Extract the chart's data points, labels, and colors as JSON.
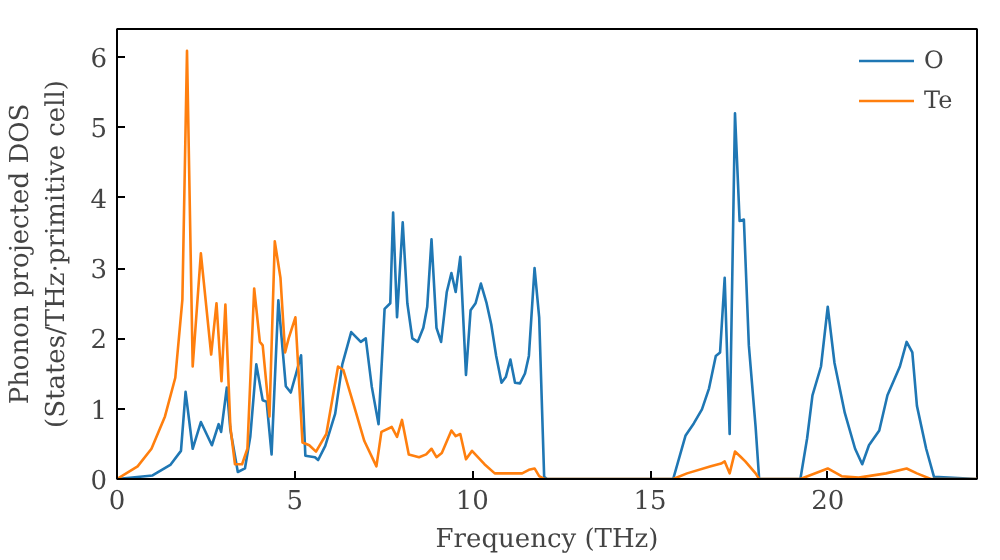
{
  "chart_data": {
    "type": "line",
    "xlabel": "Frequency (THz)",
    "ylabel": "Phonon projected DOS\n(States/THz·primitive cell)",
    "xlim": [
      0,
      24.2
    ],
    "ylim": [
      0,
      6.4
    ],
    "xticks": [
      0,
      5,
      10,
      15,
      20
    ],
    "yticks": [
      0,
      1,
      2,
      3,
      4,
      5,
      6
    ],
    "grid": false,
    "legend": "top right",
    "series": [
      {
        "name": "O",
        "color": "#1f77b4",
        "x": [
          0,
          1.0,
          1.5,
          1.8,
          1.93,
          2.13,
          2.36,
          2.67,
          2.86,
          2.93,
          3.09,
          3.19,
          3.4,
          3.6,
          3.75,
          3.92,
          4.1,
          4.21,
          4.35,
          4.54,
          4.75,
          4.89,
          5.04,
          5.18,
          5.3,
          5.57,
          5.66,
          5.86,
          6.14,
          6.34,
          6.59,
          6.86,
          7.0,
          7.17,
          7.36,
          7.53,
          7.69,
          7.77,
          7.88,
          8.04,
          8.17,
          8.31,
          8.46,
          8.62,
          8.73,
          8.85,
          8.99,
          9.12,
          9.28,
          9.41,
          9.53,
          9.66,
          9.82,
          9.95,
          10.09,
          10.24,
          10.4,
          10.53,
          10.67,
          10.82,
          10.94,
          11.07,
          11.2,
          11.34,
          11.48,
          11.59,
          11.75,
          11.88,
          12.02,
          12.1,
          15.65,
          16.0,
          16.23,
          16.46,
          16.66,
          16.85,
          16.97,
          17.1,
          17.24,
          17.39,
          17.52,
          17.64,
          17.78,
          17.97,
          18.07,
          19.23,
          19.42,
          19.57,
          19.81,
          20.0,
          20.19,
          20.48,
          20.77,
          20.97,
          21.16,
          21.45,
          21.68,
          22.03,
          22.22,
          22.38,
          22.51,
          22.77,
          22.99,
          24.2
        ],
        "values": [
          0,
          0.05,
          0.2,
          0.4,
          1.24,
          0.43,
          0.81,
          0.48,
          0.78,
          0.67,
          1.3,
          0.7,
          0.1,
          0.15,
          0.6,
          1.63,
          1.12,
          1.1,
          0.35,
          2.54,
          1.32,
          1.23,
          1.5,
          1.76,
          0.33,
          0.31,
          0.27,
          0.47,
          0.93,
          1.63,
          2.09,
          1.95,
          2.0,
          1.31,
          0.78,
          2.42,
          2.5,
          3.79,
          2.3,
          3.65,
          2.5,
          2.0,
          1.95,
          2.15,
          2.45,
          3.41,
          2.15,
          1.95,
          2.66,
          2.93,
          2.66,
          3.16,
          1.48,
          2.4,
          2.5,
          2.78,
          2.5,
          2.2,
          1.75,
          1.37,
          1.45,
          1.7,
          1.37,
          1.36,
          1.5,
          1.75,
          3.0,
          2.3,
          0.03,
          0,
          0,
          0.62,
          0.79,
          0.99,
          1.29,
          1.75,
          1.8,
          2.86,
          0.64,
          5.2,
          3.67,
          3.69,
          1.9,
          0.74,
          0,
          0,
          0.58,
          1.19,
          1.6,
          2.45,
          1.65,
          0.94,
          0.43,
          0.21,
          0.48,
          0.69,
          1.19,
          1.6,
          1.95,
          1.8,
          1.04,
          0.43,
          0.03,
          0
        ]
      },
      {
        "name": "Te",
        "color": "#ff7f0e",
        "x": [
          0,
          0.58,
          0.97,
          1.35,
          1.64,
          1.84,
          1.97,
          2.13,
          2.36,
          2.65,
          2.8,
          2.94,
          3.05,
          3.19,
          3.32,
          3.52,
          3.67,
          3.86,
          4.02,
          4.1,
          4.29,
          4.44,
          4.6,
          4.73,
          4.83,
          5.02,
          5.22,
          5.41,
          5.6,
          5.89,
          6.22,
          6.37,
          6.67,
          6.96,
          7.3,
          7.44,
          7.73,
          7.88,
          8.02,
          8.21,
          8.5,
          8.7,
          8.85,
          8.99,
          9.14,
          9.41,
          9.53,
          9.66,
          9.82,
          9.99,
          10.34,
          10.63,
          11.02,
          11.4,
          11.59,
          11.75,
          11.88,
          12.02,
          15.65,
          16.04,
          16.71,
          17.0,
          17.1,
          17.24,
          17.39,
          17.54,
          17.68,
          17.97,
          18.07,
          19.23,
          20.0,
          20.39,
          20.87,
          21.64,
          22.22,
          22.51,
          22.9,
          24.2
        ],
        "values": [
          0,
          0.18,
          0.43,
          0.89,
          1.44,
          2.55,
          6.09,
          1.6,
          3.21,
          1.77,
          2.5,
          1.39,
          2.48,
          0.74,
          0.21,
          0.21,
          0.43,
          2.71,
          1.95,
          1.9,
          0.89,
          3.38,
          2.86,
          1.8,
          2.0,
          2.3,
          0.52,
          0.48,
          0.39,
          0.64,
          1.6,
          1.55,
          1.04,
          0.54,
          0.18,
          0.67,
          0.74,
          0.6,
          0.84,
          0.35,
          0.31,
          0.35,
          0.43,
          0.31,
          0.37,
          0.69,
          0.61,
          0.64,
          0.28,
          0.4,
          0.21,
          0.08,
          0.08,
          0.08,
          0.13,
          0.15,
          0.04,
          0,
          0,
          0.08,
          0.18,
          0.22,
          0.25,
          0.08,
          0.39,
          0.32,
          0.25,
          0.08,
          0,
          0,
          0.15,
          0.04,
          0.02,
          0.08,
          0.15,
          0.08,
          0,
          0
        ]
      }
    ]
  }
}
